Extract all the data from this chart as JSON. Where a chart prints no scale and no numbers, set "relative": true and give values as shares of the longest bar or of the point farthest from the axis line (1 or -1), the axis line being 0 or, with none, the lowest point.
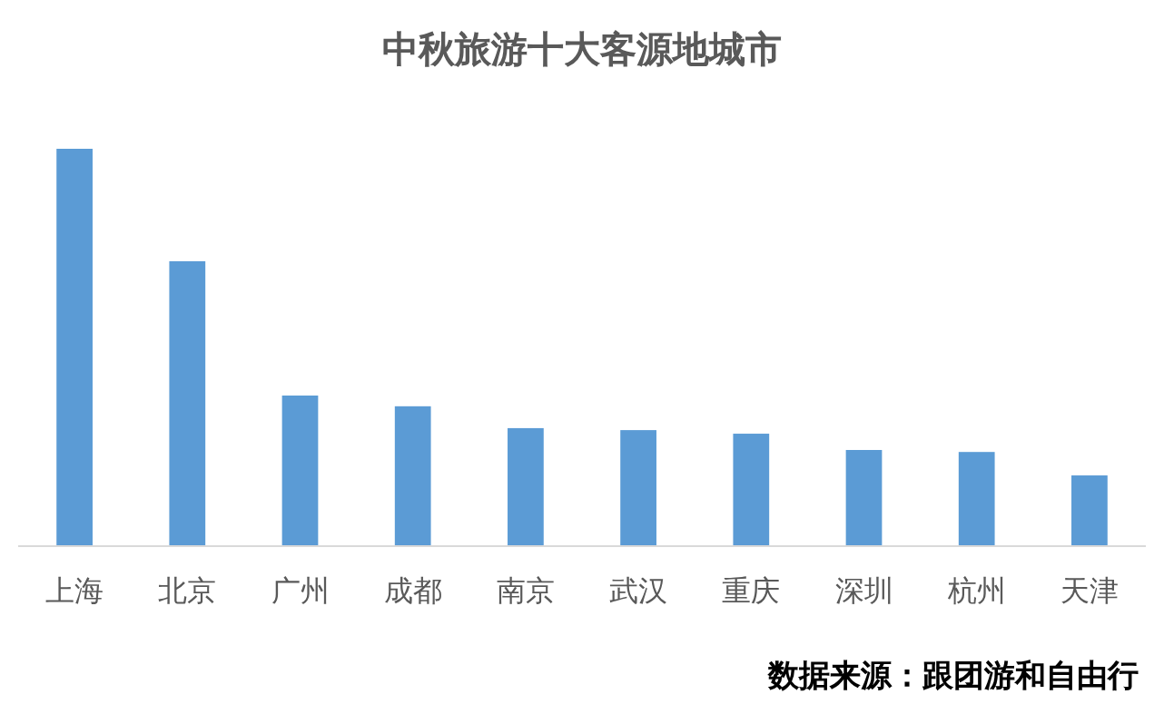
{
  "chart_data": {
    "type": "bar",
    "title": "中秋旅游十大客源地城市",
    "categories": [
      "上海",
      "北京",
      "广州",
      "成都",
      "南京",
      "武汉",
      "重庆",
      "深圳",
      "杭州",
      "天津"
    ],
    "values": [
      1,
      0.717,
      0.379,
      0.352,
      0.297,
      0.292,
      0.283,
      0.242,
      0.237,
      0.178
    ],
    "color": "#5b9bd5",
    "relative": true,
    "annotations": [
      "数据来源：跟团游和自由行"
    ]
  }
}
